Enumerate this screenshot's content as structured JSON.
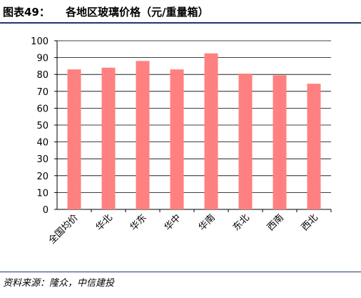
{
  "header": {
    "figure_number": "图表49：",
    "title": "各地区玻璃价格（元/重量箱）"
  },
  "source": "资料来源：隆众，中信建投",
  "colors": {
    "bar": "#ff8080",
    "grid": "#000000",
    "rule": "#1b3a6b"
  },
  "chart_data": {
    "type": "bar",
    "title": "各地区玻璃价格（元/重量箱）",
    "xlabel": "",
    "ylabel": "",
    "categories": [
      "全国均价",
      "华北",
      "华东",
      "华中",
      "华南",
      "东北",
      "西南",
      "西北"
    ],
    "values": [
      83,
      84,
      88,
      83,
      92.5,
      80.5,
      79.5,
      74.5
    ],
    "ylim": [
      0,
      100
    ],
    "yticks": [
      0,
      10,
      20,
      30,
      40,
      50,
      60,
      70,
      80,
      90,
      100
    ],
    "grid": true,
    "legend": "none"
  }
}
